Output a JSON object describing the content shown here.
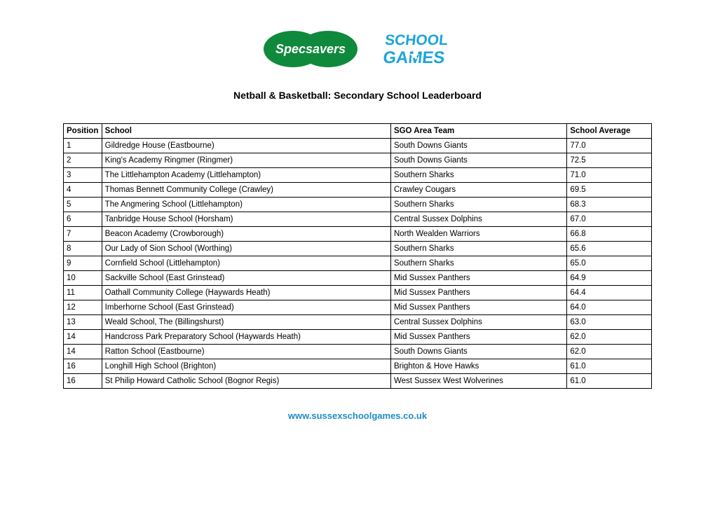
{
  "logos": {
    "specsavers": {
      "text": "Specsavers",
      "fill": "#0f8a3c",
      "textColor": "#ffffff"
    },
    "schoolgames": {
      "line1": "SCHOOL",
      "line2": "GAMES",
      "color": "#1ca5d8"
    }
  },
  "title": "Netball & Basketball: Secondary School Leaderboard",
  "table": {
    "columns": [
      "Position",
      "School",
      "SGO Area Team",
      "School Average"
    ],
    "rows": [
      [
        "1",
        "Gildredge House (Eastbourne)",
        "South Downs Giants",
        "77.0"
      ],
      [
        "2",
        "King's Academy Ringmer (Ringmer)",
        "South Downs Giants",
        "72.5"
      ],
      [
        "3",
        "The Littlehampton Academy (Littlehampton)",
        "Southern Sharks",
        "71.0"
      ],
      [
        "4",
        "Thomas Bennett Community College (Crawley)",
        "Crawley Cougars",
        "69.5"
      ],
      [
        "5",
        "The Angmering School (Littlehampton)",
        "Southern Sharks",
        "68.3"
      ],
      [
        "6",
        "Tanbridge House School (Horsham)",
        "Central Sussex Dolphins",
        "67.0"
      ],
      [
        "7",
        "Beacon Academy (Crowborough)",
        "North Wealden Warriors",
        "66.8"
      ],
      [
        "8",
        "Our Lady of Sion School (Worthing)",
        "Southern Sharks",
        "65.6"
      ],
      [
        "9",
        "Cornfield School (Littlehampton)",
        "Southern Sharks",
        "65.0"
      ],
      [
        "10",
        "Sackville School (East Grinstead)",
        "Mid Sussex Panthers",
        "64.9"
      ],
      [
        "11",
        "Oathall Community College (Haywards Heath)",
        "Mid Sussex Panthers",
        "64.4"
      ],
      [
        "12",
        "Imberhorne School (East Grinstead)",
        "Mid Sussex Panthers",
        "64.0"
      ],
      [
        "13",
        "Weald School, The (Billingshurst)",
        "Central Sussex Dolphins",
        "63.0"
      ],
      [
        "14",
        "Handcross Park Preparatory School (Haywards Heath)",
        "Mid Sussex Panthers",
        "62.0"
      ],
      [
        "14",
        "Ratton School (Eastbourne)",
        "South Downs Giants",
        "62.0"
      ],
      [
        "16",
        "Longhill High School (Brighton)",
        "Brighton & Hove Hawks",
        "61.0"
      ],
      [
        "16",
        "St Philip Howard Catholic School (Bognor Regis)",
        "West Sussex West Wolverines",
        "61.0"
      ]
    ]
  },
  "footer": {
    "url": "www.sussexschoolgames.co.uk",
    "color": "#1f8cc6"
  }
}
